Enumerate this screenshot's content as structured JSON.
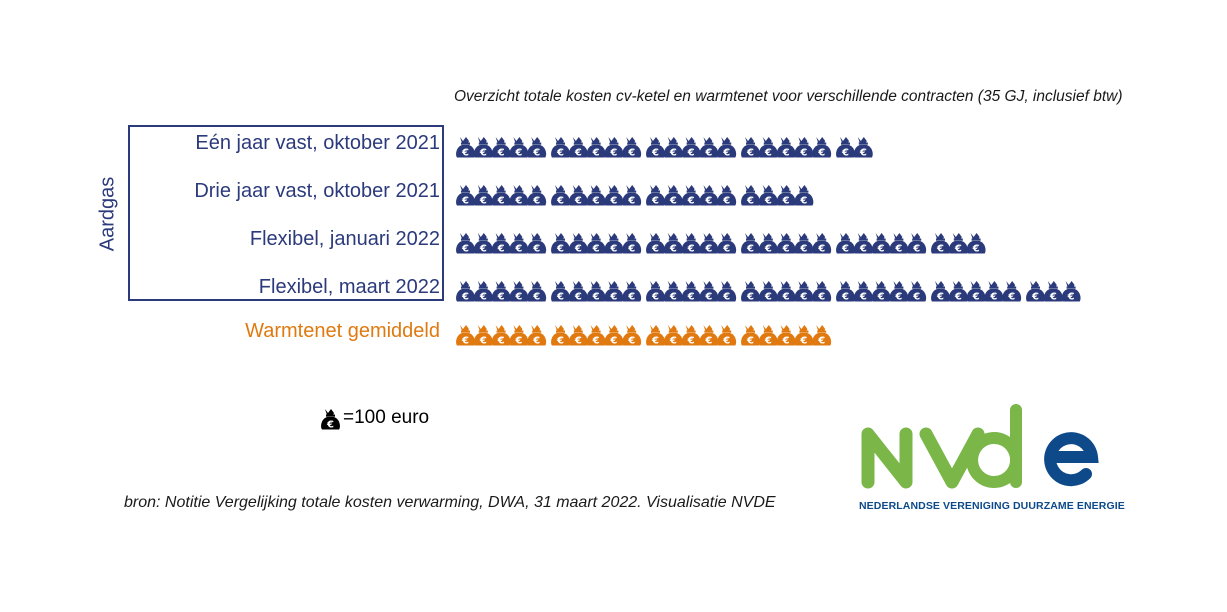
{
  "chart_data": {
    "type": "bar",
    "title": "Overzicht totale kosten cv-ketel en warmtenet voor verschillende contracten (35 GJ, inclusief btw)",
    "group_label": "Aardgas",
    "unit_legend": "=100 euro",
    "unit_value": 100,
    "icons_per_cluster": 5,
    "categories": [
      "Eén jaar vast, oktober 2021",
      "Drie jaar vast, oktober 2021",
      "Flexibel, januari 2022",
      "Flexibel, maart 2022",
      "Warmtenet gemiddeld"
    ],
    "values": [
      2200,
      1900,
      2800,
      3300,
      2000
    ],
    "colors": [
      "#2b3a7b",
      "#2b3a7b",
      "#2b3a7b",
      "#2b3a7b",
      "#e07a10"
    ],
    "legend_color": "#000000"
  },
  "source": "bron: Notitie Vergelijking totale kosten verwarming, DWA, 31 maart 2022. Visualisatie NVDE",
  "logo": {
    "text": "NVDE",
    "tagline": "NEDERLANDSE VERENIGING DUURZAME ENERGIE",
    "green": "#7ab648",
    "blue": "#0e4a8a"
  }
}
